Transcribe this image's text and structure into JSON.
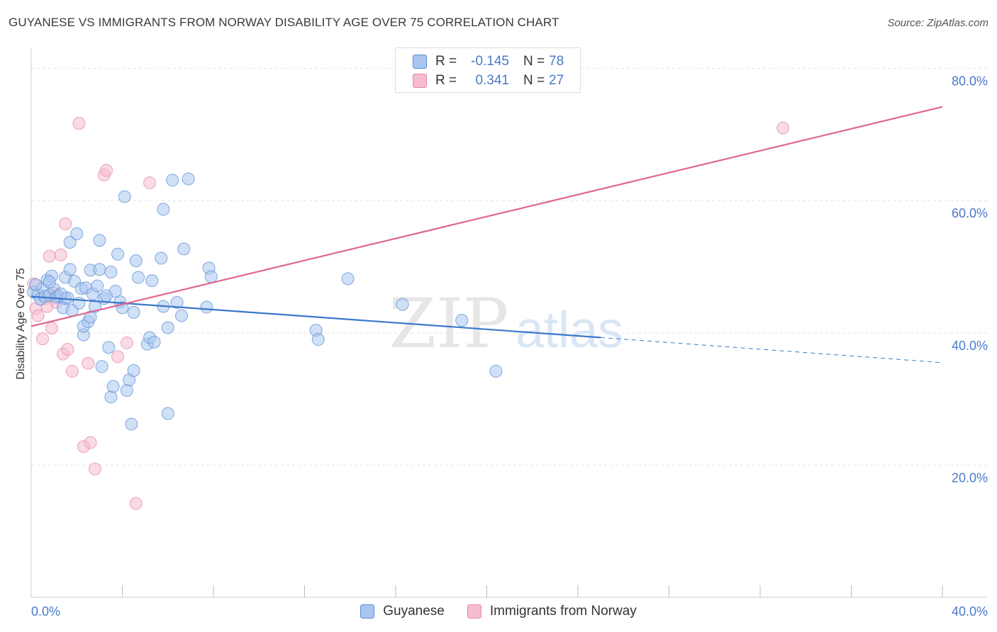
{
  "title": "GUYANESE VS IMMIGRANTS FROM NORWAY DISABILITY AGE OVER 75 CORRELATION CHART",
  "source": "Source: ZipAtlas.com",
  "watermark": {
    "zip": "ZIP",
    "atlas": "atlas"
  },
  "legend": {
    "rows": [
      {
        "r_label": "R =",
        "r_value": "-0.145",
        "n_label": "N =",
        "n_value": "78"
      },
      {
        "r_label": "R =",
        "r_value": "0.341",
        "n_label": "N =",
        "n_value": "27"
      }
    ]
  },
  "colors": {
    "blue_fill": "#a9c6ef",
    "blue_stroke": "#5b8fd6",
    "blue_line": "#3a78cc",
    "pink_fill": "#f5bccd",
    "pink_stroke": "#e58aa6",
    "pink_line": "#e0678f",
    "grid": "#e4e4e4",
    "tick_text": "#4a7ac9"
  },
  "chart_data": {
    "type": "scatter",
    "title": "GUYANESE VS IMMIGRANTS FROM NORWAY DISABILITY AGE OVER 75 CORRELATION CHART",
    "xlabel": "",
    "ylabel": "Disability Age Over 75",
    "xlim": [
      0,
      40
    ],
    "ylim": [
      0,
      82
    ],
    "x_tick_labels": [
      {
        "value": 0,
        "label": "0.0%"
      },
      {
        "value": 40,
        "label": "40.0%"
      }
    ],
    "y_tick_labels": [
      {
        "value": 20,
        "label": "20.0%"
      },
      {
        "value": 40,
        "label": "40.0%"
      },
      {
        "value": 60,
        "label": "60.0%"
      },
      {
        "value": 80,
        "label": "80.0%"
      }
    ],
    "series": [
      {
        "name": "Guyanese",
        "r": -0.145,
        "n": 78,
        "trend": {
          "x0": 0,
          "y0": 45.5,
          "x1": 25,
          "y1": 39.3,
          "dashed_to_x": 40,
          "dashed_to_y": 35.5
        },
        "points": [
          [
            0.1,
            46.2
          ],
          [
            0.3,
            45.8
          ],
          [
            0.4,
            45.1
          ],
          [
            0.5,
            46.8
          ],
          [
            0.6,
            45.5
          ],
          [
            0.7,
            48.0
          ],
          [
            0.8,
            45.7
          ],
          [
            0.9,
            48.6
          ],
          [
            1.0,
            46.6
          ],
          [
            1.1,
            45.4
          ],
          [
            1.2,
            45.6
          ],
          [
            1.4,
            43.8
          ],
          [
            1.5,
            48.4
          ],
          [
            1.5,
            45.2
          ],
          [
            1.6,
            45.3
          ],
          [
            1.7,
            49.6
          ],
          [
            1.7,
            53.7
          ],
          [
            1.8,
            43.4
          ],
          [
            1.9,
            47.8
          ],
          [
            2.0,
            55.0
          ],
          [
            2.2,
            46.7
          ],
          [
            2.3,
            39.7
          ],
          [
            2.3,
            41.0
          ],
          [
            2.4,
            46.8
          ],
          [
            2.5,
            41.7
          ],
          [
            2.6,
            49.5
          ],
          [
            2.6,
            42.4
          ],
          [
            2.7,
            45.9
          ],
          [
            2.8,
            44.0
          ],
          [
            2.9,
            47.1
          ],
          [
            3.0,
            49.6
          ],
          [
            3.0,
            54.0
          ],
          [
            3.1,
            34.9
          ],
          [
            3.2,
            45.2
          ],
          [
            3.3,
            45.6
          ],
          [
            3.4,
            37.8
          ],
          [
            3.5,
            49.2
          ],
          [
            3.5,
            30.3
          ],
          [
            3.6,
            31.9
          ],
          [
            3.8,
            51.9
          ],
          [
            3.9,
            44.7
          ],
          [
            4.0,
            43.8
          ],
          [
            4.1,
            60.6
          ],
          [
            4.2,
            31.3
          ],
          [
            4.3,
            32.9
          ],
          [
            4.4,
            26.2
          ],
          [
            4.5,
            34.3
          ],
          [
            4.5,
            43.1
          ],
          [
            4.6,
            50.9
          ],
          [
            4.7,
            48.4
          ],
          [
            5.1,
            38.3
          ],
          [
            5.2,
            39.3
          ],
          [
            5.3,
            47.9
          ],
          [
            5.4,
            38.6
          ],
          [
            5.7,
            51.3
          ],
          [
            5.8,
            58.7
          ],
          [
            5.8,
            44.0
          ],
          [
            6.0,
            27.8
          ],
          [
            6.0,
            40.8
          ],
          [
            6.2,
            63.1
          ],
          [
            6.4,
            44.6
          ],
          [
            6.6,
            42.6
          ],
          [
            6.7,
            52.7
          ],
          [
            6.9,
            63.3
          ],
          [
            7.7,
            43.9
          ],
          [
            7.8,
            49.8
          ],
          [
            7.9,
            48.5
          ],
          [
            12.5,
            40.4
          ],
          [
            12.6,
            39.0
          ],
          [
            13.9,
            48.2
          ],
          [
            16.3,
            44.3
          ],
          [
            18.9,
            41.9
          ],
          [
            20.4,
            34.2
          ],
          [
            0.2,
            47.3
          ],
          [
            0.8,
            47.7
          ],
          [
            1.3,
            45.9
          ],
          [
            2.1,
            44.5
          ],
          [
            3.7,
            46.3
          ]
        ]
      },
      {
        "name": "Immigrants from Norway",
        "r": 0.341,
        "n": 27,
        "trend": {
          "x0": 0,
          "y0": 41.0,
          "x1": 40,
          "y1": 74.2
        },
        "points": [
          [
            0.1,
            47.4
          ],
          [
            0.2,
            43.7
          ],
          [
            0.3,
            42.6
          ],
          [
            0.5,
            39.1
          ],
          [
            0.6,
            45.2
          ],
          [
            0.7,
            44.0
          ],
          [
            0.8,
            51.6
          ],
          [
            0.9,
            40.7
          ],
          [
            1.0,
            46.0
          ],
          [
            1.1,
            44.6
          ],
          [
            1.3,
            51.8
          ],
          [
            1.4,
            36.8
          ],
          [
            1.5,
            56.5
          ],
          [
            1.6,
            37.5
          ],
          [
            1.8,
            34.2
          ],
          [
            2.1,
            71.7
          ],
          [
            2.3,
            22.8
          ],
          [
            2.5,
            35.4
          ],
          [
            2.6,
            23.4
          ],
          [
            2.8,
            19.4
          ],
          [
            3.2,
            63.9
          ],
          [
            3.3,
            64.6
          ],
          [
            3.8,
            36.4
          ],
          [
            4.2,
            38.5
          ],
          [
            4.6,
            14.2
          ],
          [
            5.2,
            62.7
          ],
          [
            33.0,
            71.0
          ]
        ]
      }
    ]
  }
}
